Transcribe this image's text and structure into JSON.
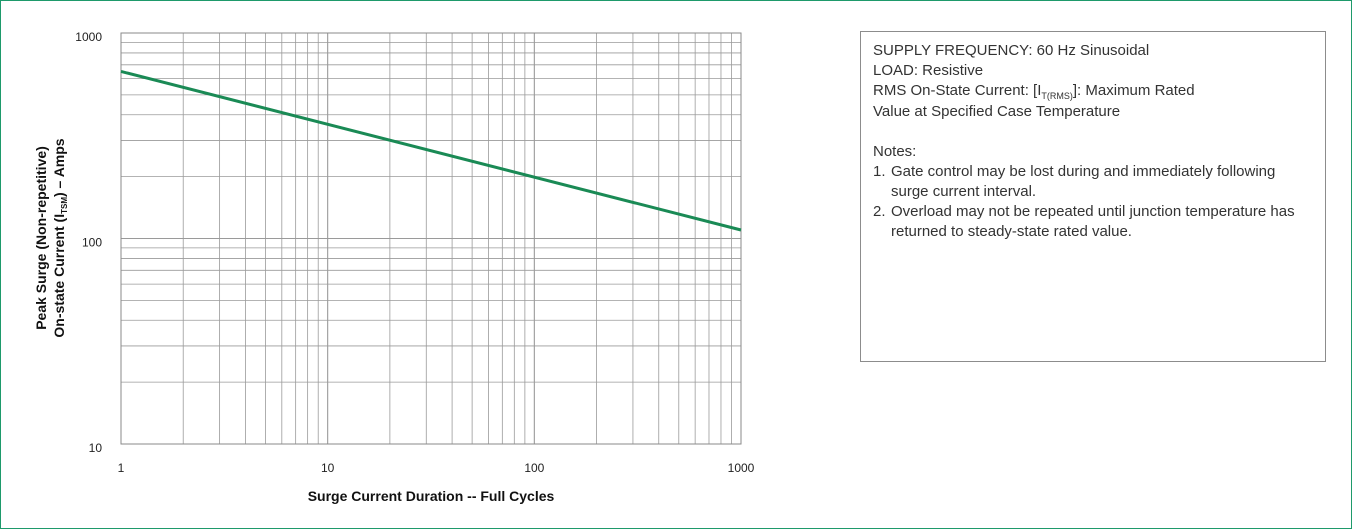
{
  "chart_data": {
    "type": "line",
    "x_scale": "log",
    "y_scale": "log",
    "xlim": [
      1,
      1000
    ],
    "ylim": [
      10,
      1000
    ],
    "x_ticks": [
      "1",
      "10",
      "100",
      "1000"
    ],
    "y_ticks": [
      "10",
      "100",
      "1000"
    ],
    "grid": true,
    "xlabel": "Surge Current Duration -- Full Cycles",
    "ylabel_line1": "Peak Surge (Non-repetitive)",
    "ylabel_line2_prefix": "On-state Current (I",
    "ylabel_line2_sub": "TSM",
    "ylabel_line2_suffix": ") – Amps",
    "series": [
      {
        "color": "#1a8a55",
        "x": [
          1,
          1000
        ],
        "y": [
          650,
          110
        ]
      }
    ]
  },
  "notes": {
    "supply": "SUPPLY FREQUENCY: 60 Hz Sinusoidal",
    "load": "LOAD: Resistive",
    "rms_prefix": "RMS On-State Current: [I",
    "rms_sub": "T(RMS)",
    "rms_suffix": "]: Maximum Rated",
    "rms_line2": "Value at Specified Case Temperature",
    "notes_heading": "Notes:",
    "items": [
      {
        "num": "1.",
        "text": "Gate control may be lost during and immediately following surge current interval."
      },
      {
        "num": "2.",
        "text": "Overload may not be repeated until junction temperature has returned to steady-state rated value."
      }
    ]
  },
  "colors": {
    "frame": "#1e9a6b",
    "grid": "#9a9a9a",
    "series": "#1a8a55",
    "notes_border": "#8c8c8c"
  }
}
